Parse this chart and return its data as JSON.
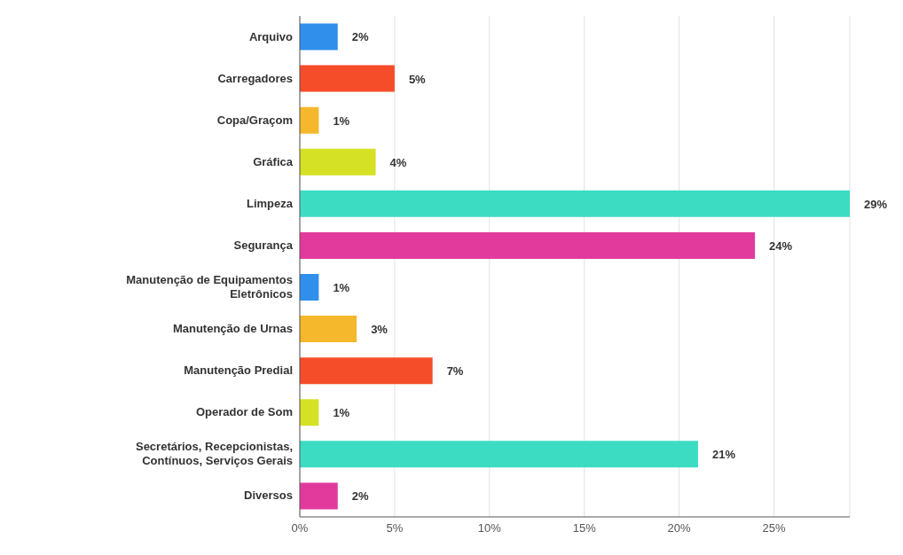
{
  "chart_data": {
    "type": "bar",
    "orientation": "horizontal",
    "categories": [
      "Arquivo",
      "Carregadores",
      "Copa/Graçom",
      "Gráfica",
      "Limpeza",
      "Segurança",
      "Manutenção de Equipamentos Eletrônicos",
      "Manutenção de Urnas",
      "Manutenção Predial",
      "Operador de Som",
      "Secretários, Recepcionistas, Contínuos, Serviços Gerais",
      "Diversos"
    ],
    "values": [
      2,
      5,
      1,
      4,
      29,
      24,
      1,
      3,
      7,
      1,
      21,
      2
    ],
    "colors": [
      "#2f8fea",
      "#f54d2a",
      "#f5b82c",
      "#d5e124",
      "#3cdcc2",
      "#e23a9c",
      "#2f8fea",
      "#f5b82c",
      "#f54d2a",
      "#d5e124",
      "#3cdcc2",
      "#e23a9c"
    ],
    "value_labels": [
      "2%",
      "5%",
      "1%",
      "4%",
      "29%",
      "24%",
      "1%",
      "3%",
      "7%",
      "1%",
      "21%",
      "2%"
    ],
    "xlim": [
      0,
      29
    ],
    "xticks": [
      {
        "value": 0,
        "label": "0%"
      },
      {
        "value": 5,
        "label": "5%"
      },
      {
        "value": 10,
        "label": "10%"
      },
      {
        "value": 15,
        "label": "15%"
      },
      {
        "value": 20,
        "label": "20%"
      },
      {
        "value": 25,
        "label": "25%"
      }
    ],
    "grid": "x"
  }
}
